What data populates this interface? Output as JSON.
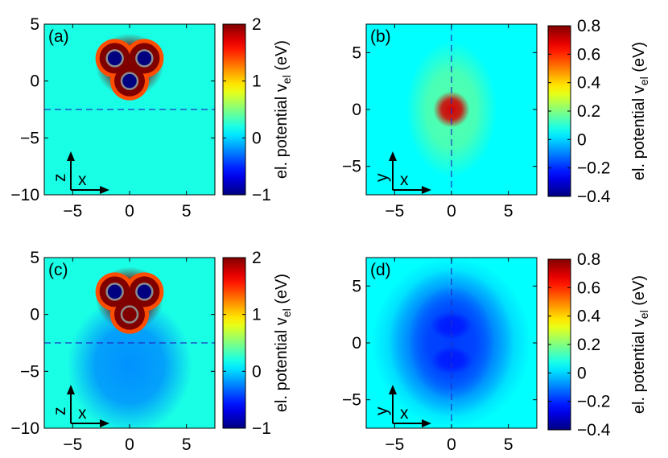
{
  "figure": {
    "colorbar_label": "el. potential v",
    "colorbar_label_sub": "el",
    "colorbar_label_unit": " (eV)"
  },
  "chart_data": [
    {
      "type": "heatmap",
      "panel_label": "(a)",
      "plane": "x-z",
      "xlabel": "x",
      "ylabel": "z",
      "xlim": [
        -7.5,
        7.5
      ],
      "ylim": [
        -10,
        5
      ],
      "xticks": [
        -5,
        0,
        5
      ],
      "xtick_labels": [
        "−5",
        "0",
        "5"
      ],
      "yticks": [
        5,
        0,
        -5,
        -10
      ],
      "ytick_labels": [
        "5",
        "0",
        "−5",
        "−10"
      ],
      "colorbar": {
        "min": -1,
        "max": 2,
        "ticks": [
          2,
          1,
          0,
          -1
        ],
        "tick_labels": [
          "2",
          "1",
          "0",
          "−1"
        ]
      },
      "background_value": 0.2,
      "cut_line": {
        "orientation": "horizontal",
        "value": -2.5
      },
      "atoms": [
        {
          "x": -1.3,
          "y": 2.0,
          "value": -1.0
        },
        {
          "x": 1.3,
          "y": 2.0,
          "value": -1.0
        },
        {
          "x": 0.0,
          "y": 0.0,
          "value": -1.0
        }
      ],
      "blobs": [
        {
          "x": 0,
          "y": 1.4,
          "rx": 3.0,
          "ry": 2.8,
          "value": 2.0
        }
      ]
    },
    {
      "type": "heatmap",
      "panel_label": "(b)",
      "plane": "x-y",
      "xlabel": "x",
      "ylabel": "y",
      "xlim": [
        -7.5,
        7.5
      ],
      "ylim": [
        -7.5,
        7.5
      ],
      "xticks": [
        -5,
        0,
        5
      ],
      "xtick_labels": [
        "−5",
        "0",
        "5"
      ],
      "yticks": [
        5,
        0,
        -5
      ],
      "ytick_labels": [
        "5",
        "0",
        "−5"
      ],
      "colorbar": {
        "min": -0.4,
        "max": 0.8,
        "ticks": [
          0.8,
          0.6,
          0.4,
          0.2,
          0,
          -0.2,
          -0.4
        ],
        "tick_labels": [
          "0.8",
          "0.6",
          "0.4",
          "0.2",
          "0",
          "−0.2",
          "−0.4"
        ]
      },
      "background_value": 0.05,
      "cut_line": {
        "orientation": "vertical",
        "value": 0
      },
      "atoms": [],
      "blobs": [
        {
          "x": 0,
          "y": 0,
          "rx": 4.0,
          "ry": 6.0,
          "value": 0.15
        },
        {
          "x": 0,
          "y": 0,
          "rx": 1.6,
          "ry": 1.6,
          "value": 0.7
        }
      ]
    },
    {
      "type": "heatmap",
      "panel_label": "(c)",
      "plane": "x-z",
      "xlabel": "x",
      "ylabel": "z",
      "xlim": [
        -7.5,
        7.5
      ],
      "ylim": [
        -10,
        5
      ],
      "xticks": [
        -5,
        0,
        5
      ],
      "xtick_labels": [
        "−5",
        "0",
        "5"
      ],
      "yticks": [
        5,
        0,
        -5,
        -10
      ],
      "ytick_labels": [
        "5",
        "0",
        "−5",
        "−10"
      ],
      "colorbar": {
        "min": -1,
        "max": 2,
        "ticks": [
          2,
          1,
          0,
          -1
        ],
        "tick_labels": [
          "2",
          "1",
          "0",
          "−1"
        ]
      },
      "background_value": 0.2,
      "cut_line": {
        "orientation": "horizontal",
        "value": -2.5
      },
      "atoms": [
        {
          "x": -1.3,
          "y": 2.0,
          "value": -1.0
        },
        {
          "x": 1.3,
          "y": 2.0,
          "value": -1.0
        },
        {
          "x": 0.0,
          "y": 0.0,
          "value": 2.0
        }
      ],
      "blobs": [
        {
          "x": 0,
          "y": -4.5,
          "rx": 5.5,
          "ry": 6.0,
          "value": -0.2
        },
        {
          "x": 0,
          "y": 1.4,
          "rx": 3.0,
          "ry": 2.8,
          "value": 2.0
        }
      ]
    },
    {
      "type": "heatmap",
      "panel_label": "(d)",
      "plane": "x-y",
      "xlabel": "x",
      "ylabel": "y",
      "xlim": [
        -7.5,
        7.5
      ],
      "ylim": [
        -7.5,
        7.5
      ],
      "xticks": [
        -5,
        0,
        5
      ],
      "xtick_labels": [
        "−5",
        "0",
        "5"
      ],
      "yticks": [
        5,
        0,
        -5
      ],
      "ytick_labels": [
        "5",
        "0",
        "−5"
      ],
      "colorbar": {
        "min": -0.4,
        "max": 0.8,
        "ticks": [
          0.8,
          0.6,
          0.4,
          0.2,
          0,
          -0.2,
          -0.4
        ],
        "tick_labels": [
          "0.8",
          "0.6",
          "0.4",
          "0.2",
          "0",
          "−0.2",
          "−0.4"
        ]
      },
      "background_value": 0.05,
      "cut_line": {
        "orientation": "vertical",
        "value": 0
      },
      "atoms": [],
      "blobs": [
        {
          "x": 0,
          "y": 0,
          "rx": 7.0,
          "ry": 7.5,
          "value": -0.05
        },
        {
          "x": 0,
          "y": 0,
          "rx": 5.5,
          "ry": 6.5,
          "value": -0.12
        },
        {
          "x": 0,
          "y": 0,
          "rx": 3.8,
          "ry": 5.0,
          "value": -0.18
        },
        {
          "x": 0,
          "y": 1.5,
          "rx": 1.8,
          "ry": 1.2,
          "value": -0.22
        },
        {
          "x": 0,
          "y": -1.5,
          "rx": 1.8,
          "ry": 1.2,
          "value": -0.22
        }
      ]
    }
  ]
}
